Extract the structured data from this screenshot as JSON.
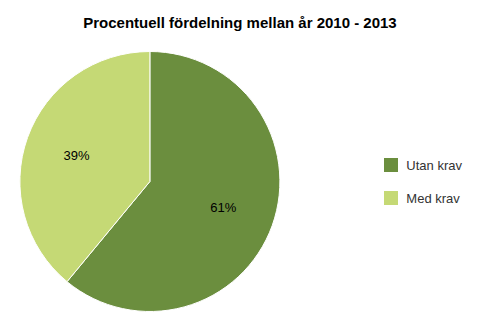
{
  "chart_data": {
    "type": "pie",
    "title": "Procentuell fördelning mellan år 2010 - 2013",
    "categories": [
      "Utan krav",
      "Med krav"
    ],
    "values": [
      61,
      39
    ],
    "value_labels": [
      "61%",
      "39%"
    ],
    "colors": [
      "#6b8e3e",
      "#c5d975"
    ],
    "data_labels": true,
    "legend": "right"
  }
}
